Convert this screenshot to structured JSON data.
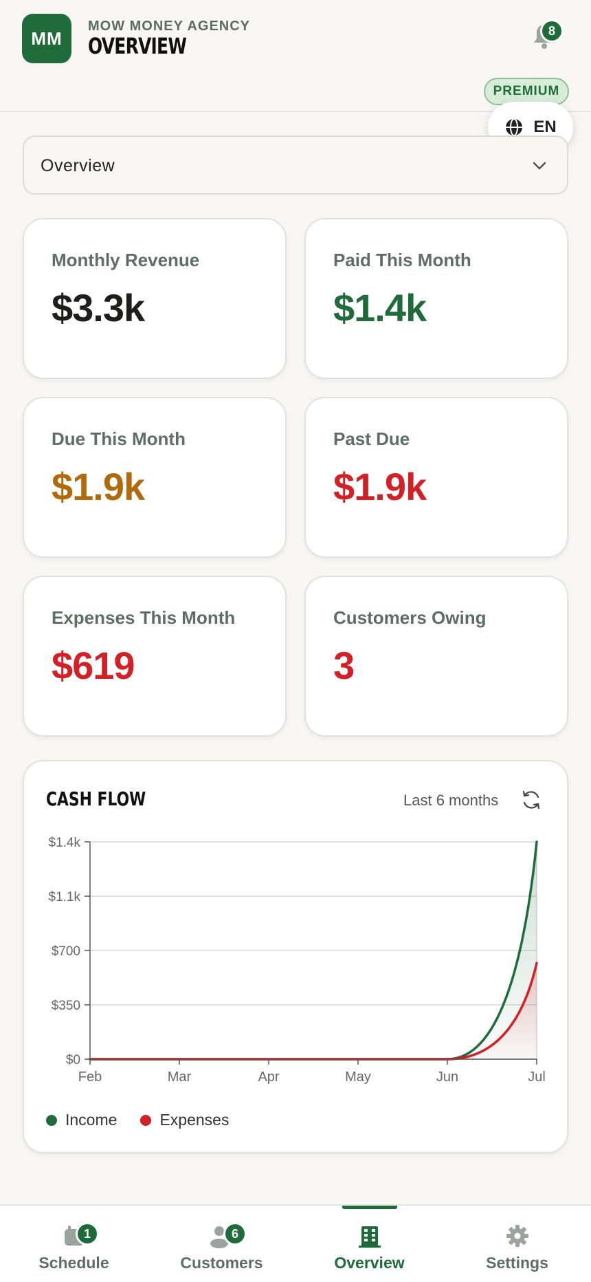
{
  "header": {
    "logo_initials": "MM",
    "agency_name": "MOW MONEY AGENCY",
    "title": "OVERVIEW",
    "notification_count": "8",
    "premium_label": "PREMIUM",
    "language": "EN"
  },
  "dropdown": {
    "selected": "Overview"
  },
  "stats": [
    {
      "label": "Monthly Revenue",
      "value": "$3.3k",
      "color": "#1d1f1d"
    },
    {
      "label": "Paid This Month",
      "value": "$1.4k",
      "color": "#1f6b3a"
    },
    {
      "label": "Due This Month",
      "value": "$1.9k",
      "color": "#b06a0b"
    },
    {
      "label": "Past Due",
      "value": "$1.9k",
      "color": "#d32027"
    },
    {
      "label": "Expenses This Month",
      "value": "$619",
      "color": "#d32027"
    },
    {
      "label": "Customers Owing",
      "value": "3",
      "color": "#d32027"
    }
  ],
  "chart": {
    "title": "CASH FLOW",
    "range_label": "Last 6 months",
    "legend": [
      {
        "name": "Income",
        "color": "#1f6b3a"
      },
      {
        "name": "Expenses",
        "color": "#d32027"
      }
    ]
  },
  "chart_data": {
    "type": "area",
    "title": "CASH FLOW",
    "xlabel": "",
    "ylabel": "",
    "categories": [
      "Feb",
      "Mar",
      "Apr",
      "May",
      "Jun",
      "Jul"
    ],
    "y_ticks": [
      "$0",
      "$350",
      "$700",
      "$1.1k",
      "$1.4k"
    ],
    "y_tick_values": [
      0,
      350,
      700,
      1050,
      1400
    ],
    "ylim": [
      0,
      1400
    ],
    "grid": true,
    "legend_position": "bottom-left",
    "series": [
      {
        "name": "Income",
        "color": "#1f6b3a",
        "values": [
          0,
          0,
          0,
          0,
          0,
          1400
        ]
      },
      {
        "name": "Expenses",
        "color": "#d32027",
        "values": [
          0,
          0,
          0,
          0,
          0,
          619
        ]
      }
    ]
  },
  "nav": [
    {
      "label": "Schedule",
      "badge": "1",
      "active": false
    },
    {
      "label": "Customers",
      "badge": "6",
      "active": false
    },
    {
      "label": "Overview",
      "badge": "",
      "active": true
    },
    {
      "label": "Settings",
      "badge": "",
      "active": false
    }
  ]
}
